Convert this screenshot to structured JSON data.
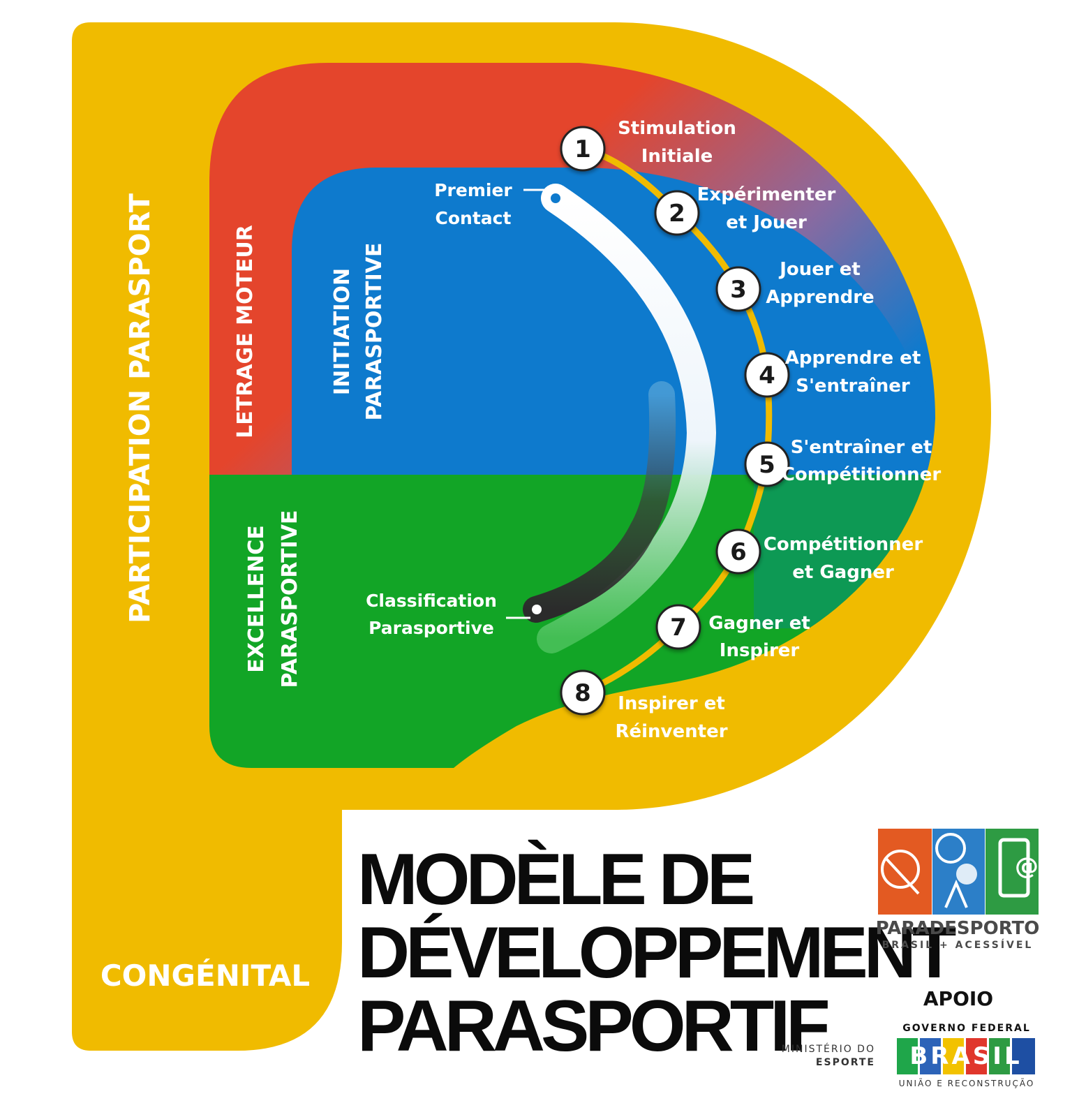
{
  "outer_label": "PARTICIPATION PARASPORT",
  "bottom_label": "CONGÉNITAL",
  "zones": {
    "red": "LETRAGE MOTEUR",
    "blue_line1": "INITIATION",
    "blue_line2": "PARASPORTIVE",
    "green_line1": "EXCELLENCE",
    "green_line2": "PARASPORTIVE"
  },
  "track": {
    "start_line1": "Premier",
    "start_line2": "Contact",
    "end_line1": "Classification",
    "end_line2": "Parasportive"
  },
  "steps": [
    {
      "num": "1",
      "line1": "Stimulation",
      "line2": "Initiale"
    },
    {
      "num": "2",
      "line1": "Expérimenter",
      "line2": "et Jouer"
    },
    {
      "num": "3",
      "line1": "Jouer et",
      "line2": "Apprendre"
    },
    {
      "num": "4",
      "line1": "Apprendre et",
      "line2": "S'entraîner"
    },
    {
      "num": "5",
      "line1": "S'entraîner et",
      "line2": "Compétitionner"
    },
    {
      "num": "6",
      "line1": "Compétitionner",
      "line2": "et Gagner"
    },
    {
      "num": "7",
      "line1": "Gagner et",
      "line2": "Inspirer"
    },
    {
      "num": "8",
      "line1": "Inspirer et",
      "line2": "Réinventer"
    }
  ],
  "title": {
    "line1": "MODÈLE DE",
    "line2": "DÉVELOPPEMENT",
    "line3": "PARASPORTIF"
  },
  "logo": {
    "name": "PARADESPORTO",
    "tagline": "BRASIL + ACESSÍVEL"
  },
  "support": {
    "label": "APOIO",
    "ministry_line1": "MINISTÉRIO DO",
    "ministry_line2": "ESPORTE",
    "gov_label": "GOVERNO FEDERAL",
    "gov_word": "BRASIL",
    "gov_tagline": "UNIÃO E RECONSTRUÇÃO"
  },
  "colors": {
    "yellow": "#F0BB00",
    "red": "#E4452C",
    "blue": "#0E7ACD",
    "green": "#12A526",
    "white": "#FFFFFF",
    "dark": "#2B2B2B"
  }
}
